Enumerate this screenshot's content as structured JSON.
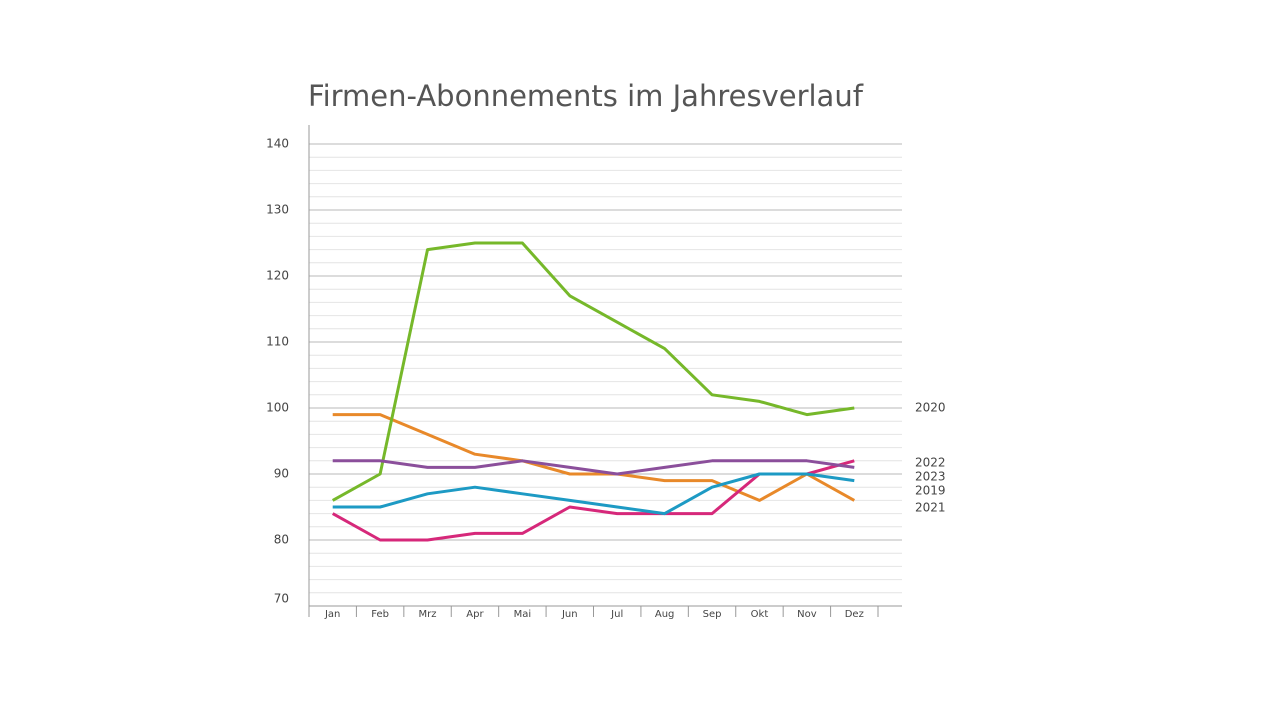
{
  "chart_data": {
    "type": "line",
    "title": "Firmen-Abonnements im Jahresverlauf",
    "categories": [
      "Jan",
      "Feb",
      "Mrz",
      "Apr",
      "Mai",
      "Jun",
      "Jul",
      "Aug",
      "Sep",
      "Okt",
      "Nov",
      "Dez"
    ],
    "series": [
      {
        "name": "2019",
        "color": "#e8892a",
        "values": [
          99,
          99,
          96,
          93,
          92,
          90,
          90,
          89,
          89,
          86,
          90,
          86
        ]
      },
      {
        "name": "2020",
        "color": "#76b82a",
        "values": [
          86,
          90,
          124,
          125,
          125,
          117,
          113,
          109,
          102,
          101,
          99,
          100
        ]
      },
      {
        "name": "2021",
        "color": "#d6287a",
        "values": [
          84,
          80,
          80,
          81,
          81,
          85,
          84,
          84,
          84,
          90,
          90,
          92
        ]
      },
      {
        "name": "2022",
        "color": "#8b4f9b",
        "values": [
          92,
          92,
          91,
          91,
          92,
          91,
          90,
          91,
          92,
          92,
          92,
          91
        ]
      },
      {
        "name": "2023",
        "color": "#1d9ac4",
        "values": [
          85,
          85,
          87,
          88,
          87,
          86,
          85,
          84,
          88,
          90,
          90,
          89
        ]
      }
    ],
    "ylim": [
      70,
      140
    ],
    "yticks": [
      70,
      80,
      90,
      100,
      110,
      120,
      130,
      140
    ],
    "grid": true
  }
}
